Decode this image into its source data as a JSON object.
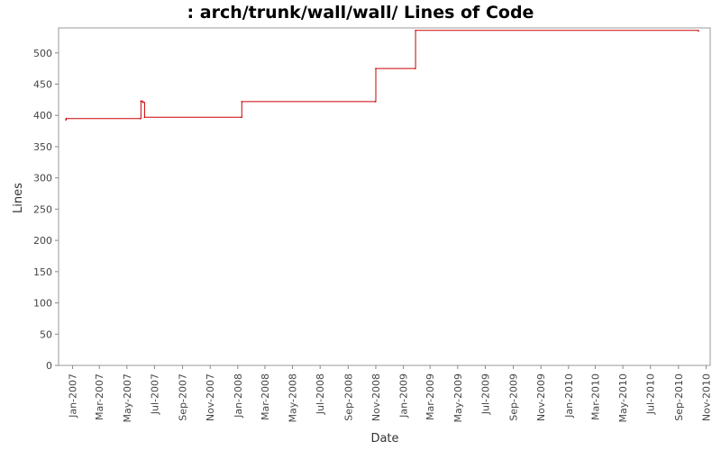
{
  "chart_data": {
    "type": "line",
    "title": ": arch/trunk/wall/wall/ Lines of Code",
    "xlabel": "Date",
    "ylabel": "Lines",
    "ylim": [
      0,
      540
    ],
    "xlim": [
      "2006-12-01",
      "2010-11-10"
    ],
    "yticks": [
      0,
      50,
      100,
      150,
      200,
      250,
      300,
      350,
      400,
      450,
      500
    ],
    "xticks": [
      "Jan-2007",
      "Mar-2007",
      "May-2007",
      "Jul-2007",
      "Sep-2007",
      "Nov-2007",
      "Jan-2008",
      "Mar-2008",
      "May-2008",
      "Jul-2008",
      "Sep-2008",
      "Nov-2008",
      "Jan-2009",
      "Mar-2009",
      "May-2009",
      "Jul-2009",
      "Sep-2009",
      "Nov-2009",
      "Jan-2010",
      "Mar-2010",
      "May-2010",
      "Jul-2010",
      "Sep-2010",
      "Nov-2010"
    ],
    "grid": false,
    "line_color": "#cc0000",
    "series": [
      {
        "step": true,
        "points": [
          {
            "x": "2006-12-17",
            "y": 393
          },
          {
            "x": "2006-12-18",
            "y": 395
          },
          {
            "x": "2007-05-31",
            "y": 395
          },
          {
            "x": "2007-06-01",
            "y": 423
          },
          {
            "x": "2007-06-05",
            "y": 421
          },
          {
            "x": "2007-06-09",
            "y": 397
          },
          {
            "x": "2008-01-09",
            "y": 397
          },
          {
            "x": "2008-01-10",
            "y": 422
          },
          {
            "x": "2008-10-31",
            "y": 422
          },
          {
            "x": "2008-11-01",
            "y": 475
          },
          {
            "x": "2009-01-27",
            "y": 475
          },
          {
            "x": "2009-01-28",
            "y": 536
          },
          {
            "x": "2010-10-15",
            "y": 535
          }
        ]
      }
    ]
  }
}
